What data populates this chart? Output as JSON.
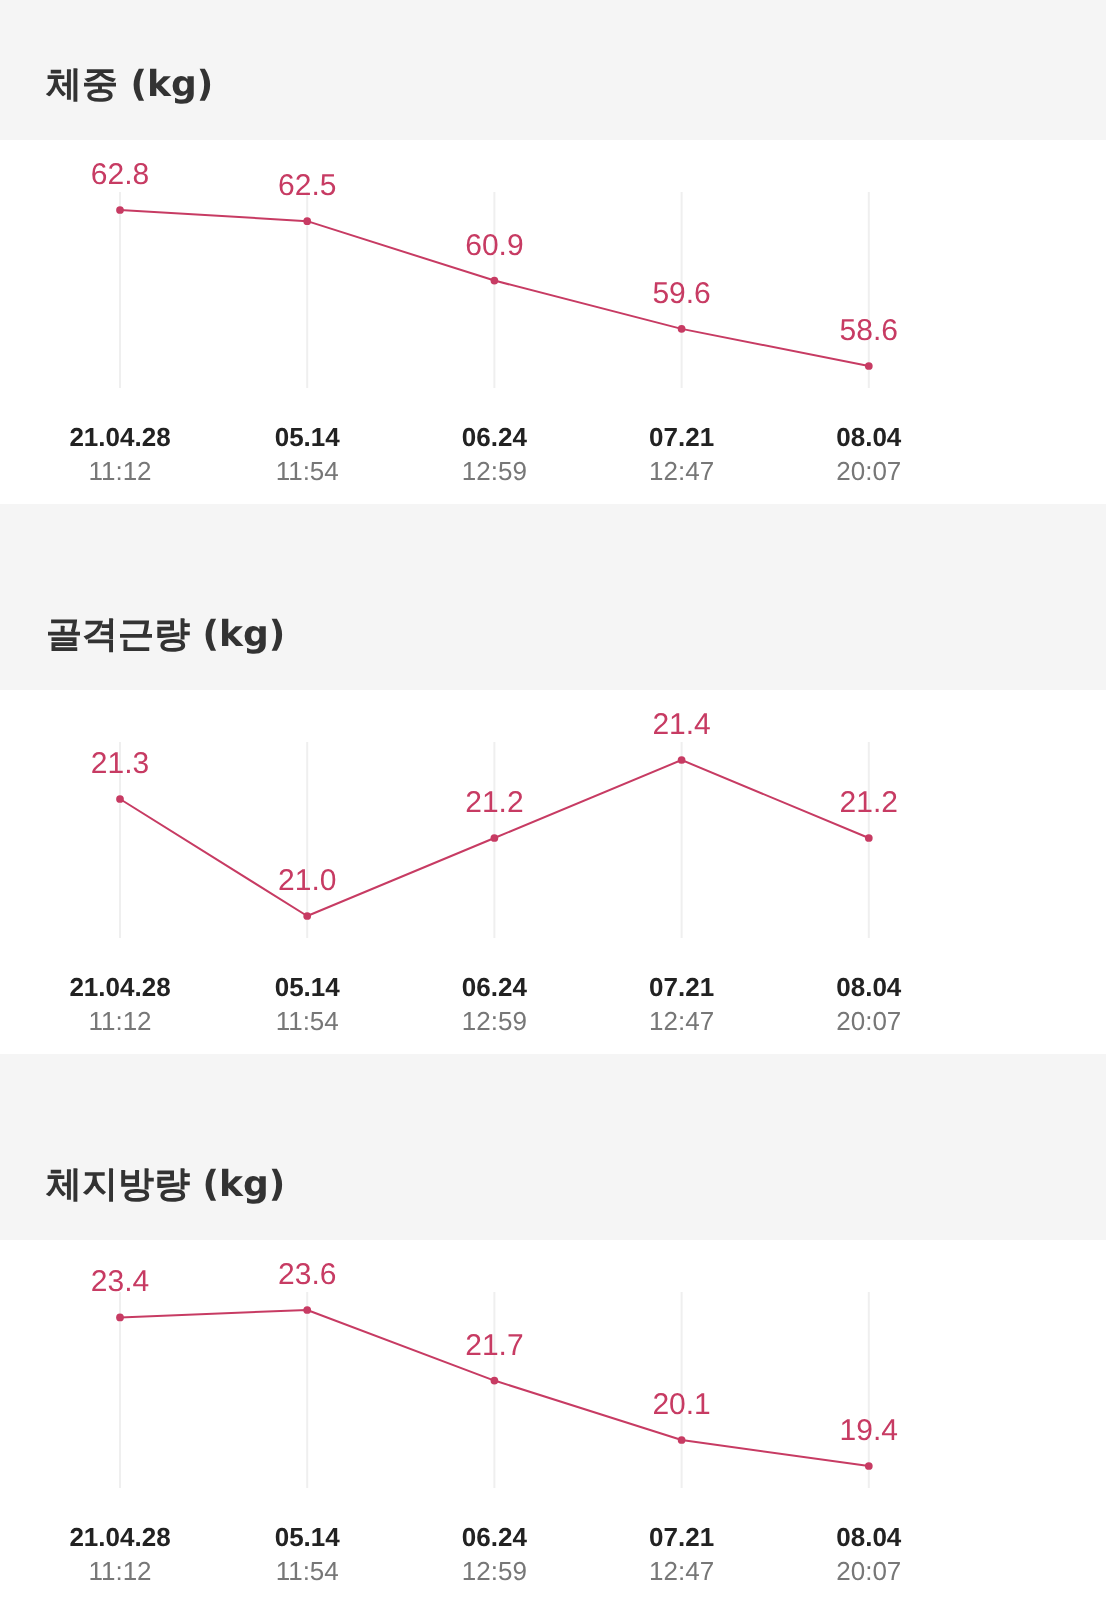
{
  "chart_data": [
    {
      "type": "line",
      "title": "체중 (kg)",
      "categories": [
        "21.04.28\n11:12",
        "05.14\n11:54",
        "06.24\n12:59",
        "07.21\n12:47",
        "08.04\n20:07"
      ],
      "series": [
        {
          "color": "#c73b63",
          "values": [
            62.8,
            62.5,
            60.9,
            59.6,
            58.6
          ]
        }
      ],
      "data_labels": true,
      "marker": "circle",
      "grid": "x",
      "tick_labels": "x"
    },
    {
      "type": "line",
      "title": "골격근량 (kg)",
      "categories": [
        "21.04.28\n11:12",
        "05.14\n11:54",
        "06.24\n12:59",
        "07.21\n12:47",
        "08.04\n20:07"
      ],
      "series": [
        {
          "color": "#c73b63",
          "values": [
            21.3,
            21.0,
            21.2,
            21.4,
            21.2
          ],
          "value_labels": [
            "21.3",
            "21.0",
            "21.2",
            "21.4",
            "21.2"
          ]
        }
      ],
      "marker": "circle",
      "grid": "x",
      "tick_labels": "x"
    },
    {
      "type": "line",
      "title": "체지방량 (kg)",
      "categories": [
        "21.04.28\n11:12",
        "05.14\n11:54",
        "06.24\n12:59",
        "07.21\n12:47",
        "08.04\n20:07"
      ],
      "series": [
        {
          "color": "#c73b63",
          "values": [
            23.4,
            23.6,
            21.7,
            20.1,
            19.4
          ]
        }
      ],
      "data_labels": true,
      "marker": "circle",
      "grid": "x",
      "tick_labels": "x"
    }
  ]
}
